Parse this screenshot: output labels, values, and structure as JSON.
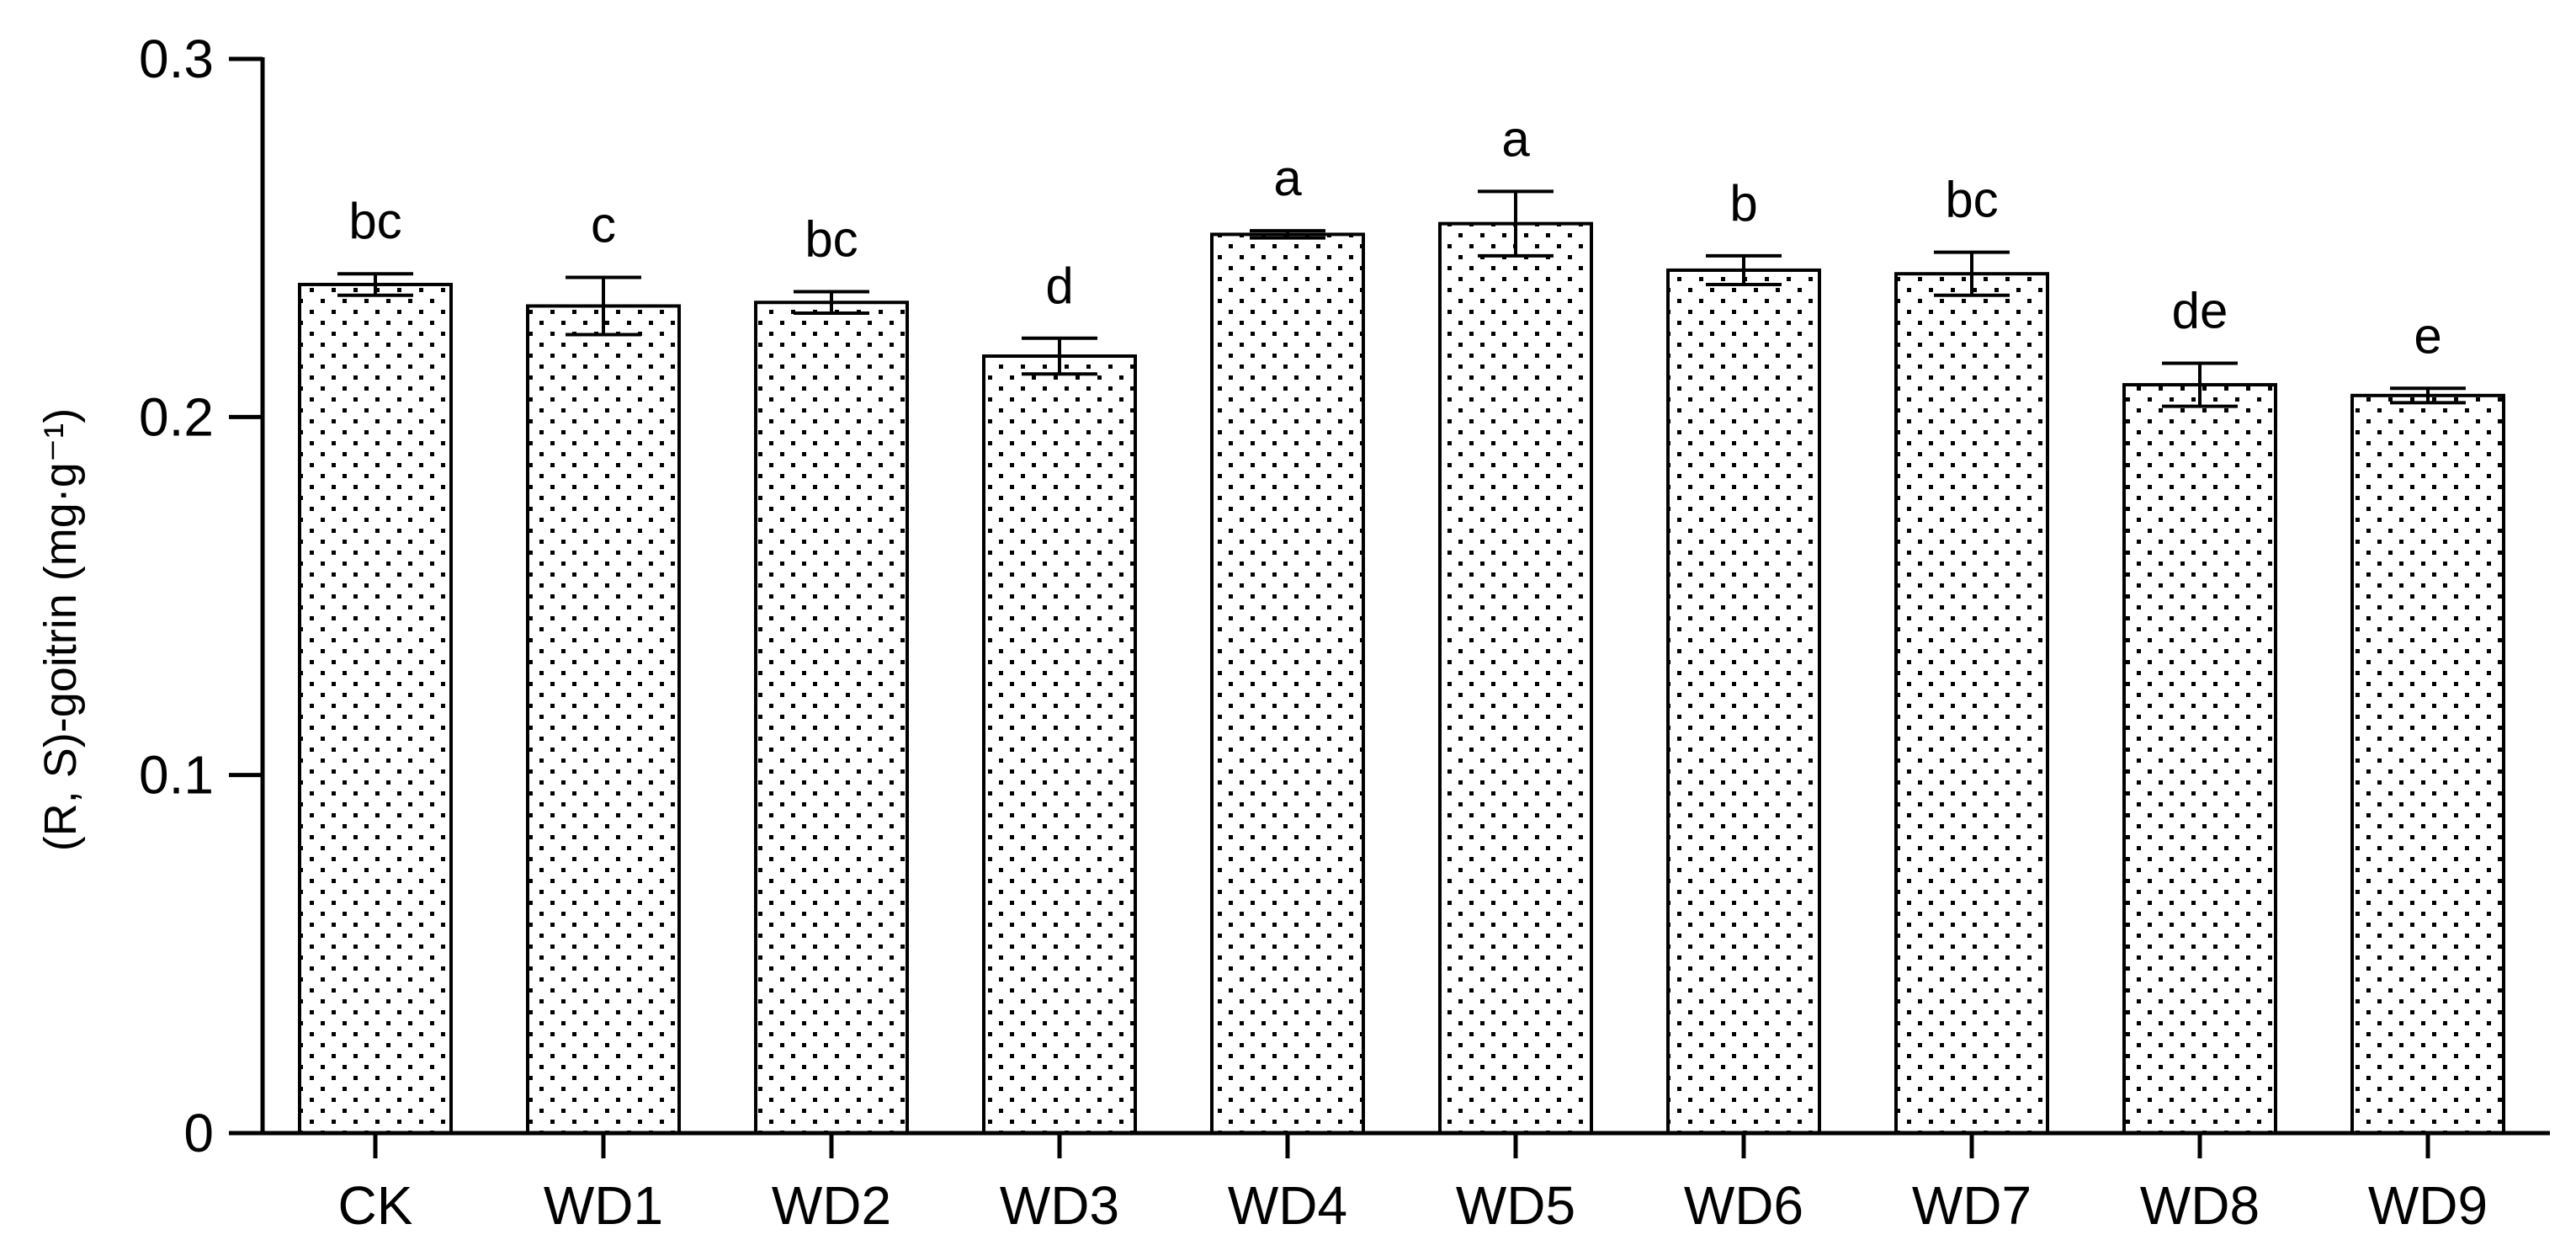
{
  "chart_data": {
    "type": "bar",
    "categories": [
      "CK",
      "WD1",
      "WD2",
      "WD3",
      "WD4",
      "WD5",
      "WD6",
      "WD7",
      "WD8",
      "WD9"
    ],
    "values": [
      0.237,
      0.231,
      0.232,
      0.217,
      0.251,
      0.254,
      0.241,
      0.24,
      0.209,
      0.206
    ],
    "errors": [
      0.003,
      0.008,
      0.003,
      0.005,
      0.001,
      0.009,
      0.004,
      0.006,
      0.006,
      0.002
    ],
    "significance_labels": [
      "bc",
      "c",
      "bc",
      "d",
      "a",
      "a",
      "b",
      "bc",
      "de",
      "e"
    ],
    "title": "",
    "xlabel": "",
    "ylabel": "(R, S)-goitrin (mg·g⁻¹)",
    "ylim": [
      0,
      0.3
    ],
    "yticks": [
      0,
      0.1,
      0.2,
      0.3
    ],
    "ytick_labels": [
      "0",
      "0.1",
      "0.2",
      "0.3"
    ],
    "grid": false,
    "bar_fill": "dotted pattern",
    "colors": {
      "bar_stroke": "#000000",
      "dot": "#000000",
      "background": "#ffffff"
    }
  }
}
